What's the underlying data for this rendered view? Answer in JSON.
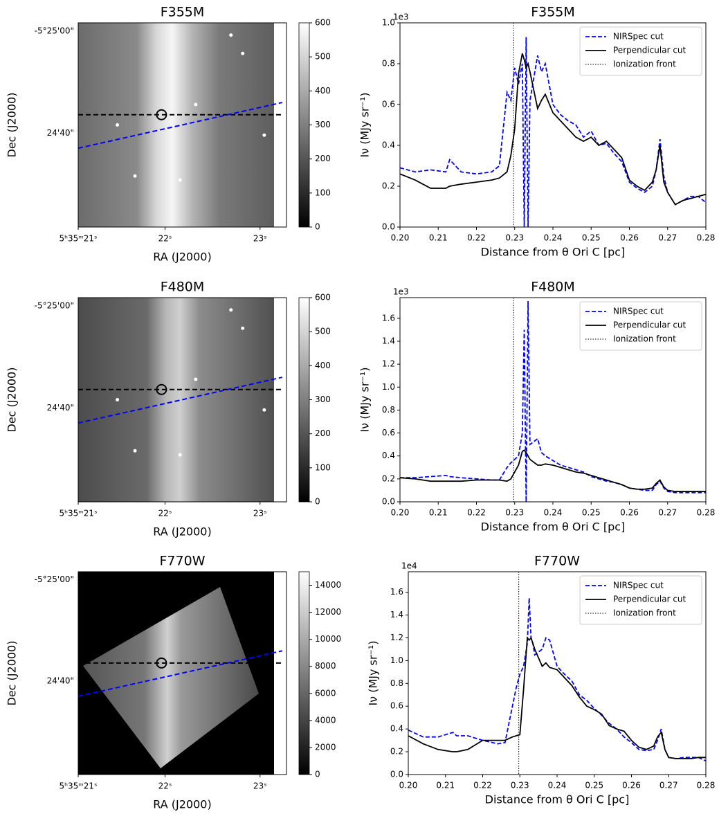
{
  "chart_data": [
    {
      "type": "image",
      "title": "F355M",
      "xlabel": "RA (J2000)",
      "ylabel": "Dec (J2000)",
      "xtick_labels": [
        "5ʰ35ᵐ21ˢ",
        "22ˢ",
        "23ˢ"
      ],
      "ytick_labels": [
        "-5°25'00\"",
        "24'40\""
      ],
      "clim": [
        0,
        600
      ],
      "cticks": [
        0,
        100,
        200,
        300,
        400,
        500,
        600
      ]
    },
    {
      "type": "line",
      "title": "F355M",
      "xlabel": "Distance from θ Ori C [pc]",
      "ylabel": "Iν (MJy sr⁻¹)",
      "y_offset_label": "1e3",
      "x": [
        0.2,
        0.204,
        0.208,
        0.212,
        0.213,
        0.216,
        0.22,
        0.224,
        0.226,
        0.228,
        0.229,
        0.23,
        0.231,
        0.232,
        0.2325,
        0.233,
        0.2335,
        0.234,
        0.236,
        0.237,
        0.238,
        0.24,
        0.242,
        0.244,
        0.246,
        0.248,
        0.25,
        0.252,
        0.254,
        0.256,
        0.258,
        0.26,
        0.262,
        0.264,
        0.266,
        0.267,
        0.268,
        0.269,
        0.27,
        0.272,
        0.274,
        0.276,
        0.278,
        0.28
      ],
      "series": [
        {
          "name": "NIRSpec cut",
          "color": "#0000ff",
          "style": "dashed",
          "values": [
            0.29,
            0.27,
            0.28,
            0.27,
            0.33,
            0.27,
            0.26,
            0.27,
            0.3,
            0.66,
            0.62,
            0.78,
            0.7,
            0.8,
            0.0,
            0.93,
            0.0,
            0.62,
            0.84,
            0.76,
            0.8,
            0.6,
            0.55,
            0.52,
            0.5,
            0.44,
            0.47,
            0.4,
            0.41,
            0.36,
            0.32,
            0.22,
            0.19,
            0.17,
            0.2,
            0.28,
            0.43,
            0.25,
            0.17,
            0.11,
            0.13,
            0.15,
            0.15,
            0.12
          ]
        },
        {
          "name": "Perpendicular cut",
          "color": "#000000",
          "style": "solid",
          "values": [
            0.26,
            0.23,
            0.19,
            0.19,
            0.2,
            0.21,
            0.22,
            0.23,
            0.24,
            0.27,
            0.35,
            0.48,
            0.75,
            0.85,
            0.82,
            0.78,
            0.8,
            0.76,
            0.58,
            0.62,
            0.65,
            0.56,
            0.52,
            0.48,
            0.44,
            0.42,
            0.44,
            0.4,
            0.42,
            0.38,
            0.34,
            0.23,
            0.2,
            0.18,
            0.22,
            0.28,
            0.4,
            0.22,
            0.17,
            0.11,
            0.13,
            0.14,
            0.15,
            0.16
          ]
        }
      ],
      "vlines": [
        {
          "name": "Ionization front",
          "x": 0.2297,
          "color": "#000000",
          "style": "dotted"
        }
      ],
      "xlim": [
        0.2,
        0.28
      ],
      "xticks": [
        {
          "value": 0.2,
          "label": "0.20"
        },
        0.21,
        0.22,
        0.23,
        0.24,
        0.25,
        0.26,
        0.27,
        0.28
      ],
      "ylim": [
        0,
        1
      ],
      "yticks": [
        {
          "value": 0,
          "label": "0.0"
        },
        0.2,
        0.4,
        0.6,
        0.8,
        {
          "value": 1,
          "label": "1.0"
        }
      ],
      "legend": "upper right"
    },
    {
      "type": "image",
      "title": "F480M",
      "xlabel": "RA (J2000)",
      "ylabel": "Dec (J2000)",
      "xtick_labels": [
        "5ʰ35ᵐ21ˢ",
        "22ˢ",
        "23ˢ"
      ],
      "ytick_labels": [
        "-5°25'00\"",
        "24'40\""
      ],
      "clim": [
        0,
        600
      ],
      "cticks": [
        0,
        100,
        200,
        300,
        400,
        500,
        600
      ]
    },
    {
      "type": "line",
      "title": "F480M",
      "xlabel": "Distance from θ Ori C [pc]",
      "ylabel": "Iν (MJy sr⁻¹)",
      "y_offset_label": "1e3",
      "x": [
        0.2,
        0.204,
        0.208,
        0.212,
        0.213,
        0.216,
        0.22,
        0.224,
        0.226,
        0.228,
        0.229,
        0.23,
        0.231,
        0.232,
        0.2325,
        0.233,
        0.2335,
        0.234,
        0.236,
        0.237,
        0.238,
        0.24,
        0.242,
        0.244,
        0.246,
        0.248,
        0.25,
        0.252,
        0.254,
        0.256,
        0.258,
        0.26,
        0.262,
        0.264,
        0.266,
        0.267,
        0.268,
        0.269,
        0.27,
        0.272,
        0.274,
        0.276,
        0.278,
        0.28
      ],
      "series": [
        {
          "name": "NIRSpec cut",
          "color": "#0000ff",
          "style": "dashed",
          "values": [
            0.21,
            0.21,
            0.22,
            0.23,
            0.22,
            0.21,
            0.2,
            0.19,
            0.19,
            0.3,
            0.34,
            0.37,
            0.4,
            0.6,
            1.5,
            0.0,
            1.75,
            0.5,
            0.55,
            0.43,
            0.4,
            0.36,
            0.32,
            0.3,
            0.28,
            0.26,
            0.22,
            0.2,
            0.18,
            0.17,
            0.15,
            0.12,
            0.11,
            0.1,
            0.1,
            0.15,
            0.18,
            0.12,
            0.09,
            0.08,
            0.08,
            0.08,
            0.08,
            0.08
          ]
        },
        {
          "name": "Perpendicular cut",
          "color": "#000000",
          "style": "solid",
          "values": [
            0.21,
            0.2,
            0.18,
            0.18,
            0.18,
            0.18,
            0.19,
            0.19,
            0.19,
            0.18,
            0.2,
            0.26,
            0.32,
            0.44,
            0.45,
            0.43,
            0.4,
            0.37,
            0.32,
            0.32,
            0.33,
            0.32,
            0.3,
            0.28,
            0.26,
            0.25,
            0.23,
            0.21,
            0.19,
            0.17,
            0.15,
            0.12,
            0.11,
            0.11,
            0.12,
            0.16,
            0.19,
            0.13,
            0.1,
            0.09,
            0.09,
            0.09,
            0.09,
            0.09
          ]
        }
      ],
      "vlines": [
        {
          "name": "Ionization front",
          "x": 0.2297,
          "color": "#000000",
          "style": "dotted"
        }
      ],
      "xlim": [
        0.2,
        0.28
      ],
      "xticks": [
        {
          "value": 0.2,
          "label": "0.20"
        },
        0.21,
        0.22,
        0.23,
        0.24,
        0.25,
        0.26,
        0.27,
        0.28
      ],
      "ylim": [
        0,
        1.78
      ],
      "yticks": [
        {
          "value": 0,
          "label": "0.0"
        },
        0.2,
        0.4,
        0.6,
        0.8,
        {
          "value": 1,
          "label": "1.0"
        },
        1.2,
        1.4,
        1.6
      ],
      "legend": "upper right"
    },
    {
      "type": "image",
      "title": "F770W",
      "xlabel": "RA (J2000)",
      "ylabel": "Dec (J2000)",
      "xtick_labels": [
        "5ʰ35ᵐ21ˢ",
        "22ˢ",
        "23ˢ"
      ],
      "ytick_labels": [
        "-5°25'00\"",
        "24'40\""
      ],
      "clim": [
        0,
        15000
      ],
      "cticks": [
        0,
        2000,
        4000,
        6000,
        8000,
        10000,
        12000,
        14000
      ]
    },
    {
      "type": "line",
      "title": "F770W",
      "xlabel": "Distance from θ Ori C [pc]",
      "ylabel": "Iν (MJy sr⁻¹)",
      "y_offset_label": "1e4",
      "x": [
        0.2,
        0.204,
        0.208,
        0.212,
        0.213,
        0.216,
        0.22,
        0.224,
        0.226,
        0.228,
        0.229,
        0.23,
        0.231,
        0.232,
        0.2325,
        0.233,
        0.2335,
        0.234,
        0.236,
        0.237,
        0.238,
        0.24,
        0.242,
        0.244,
        0.246,
        0.248,
        0.25,
        0.252,
        0.254,
        0.256,
        0.258,
        0.26,
        0.262,
        0.264,
        0.266,
        0.267,
        0.268,
        0.269,
        0.27,
        0.272,
        0.274,
        0.276,
        0.278,
        0.28
      ],
      "series": [
        {
          "name": "NIRSpec cut",
          "color": "#0000ff",
          "style": "dashed",
          "values": [
            0.39,
            0.33,
            0.33,
            0.37,
            0.34,
            0.34,
            0.3,
            0.27,
            0.28,
            0.6,
            0.76,
            0.88,
            0.95,
            1.15,
            1.55,
            1.2,
            1.15,
            1.05,
            1.1,
            1.2,
            1.18,
            0.95,
            0.88,
            0.82,
            0.7,
            0.65,
            0.58,
            0.52,
            0.45,
            0.4,
            0.33,
            0.28,
            0.22,
            0.21,
            0.22,
            0.3,
            0.4,
            0.22,
            0.15,
            0.14,
            0.15,
            0.15,
            0.15,
            0.12
          ]
        },
        {
          "name": "Perpendicular cut",
          "color": "#000000",
          "style": "solid",
          "values": [
            0.34,
            0.27,
            0.22,
            0.2,
            0.2,
            0.22,
            0.3,
            0.3,
            0.3,
            0.33,
            0.34,
            0.35,
            0.75,
            1.2,
            1.18,
            1.2,
            1.15,
            1.1,
            0.95,
            0.98,
            0.94,
            0.92,
            0.85,
            0.78,
            0.68,
            0.6,
            0.57,
            0.53,
            0.43,
            0.4,
            0.38,
            0.3,
            0.24,
            0.22,
            0.25,
            0.33,
            0.37,
            0.22,
            0.15,
            0.14,
            0.14,
            0.14,
            0.15,
            0.15
          ]
        }
      ],
      "vlines": [
        {
          "name": "Ionization front",
          "x": 0.2297,
          "color": "#000000",
          "style": "dotted"
        }
      ],
      "xlim": [
        0.2,
        0.28
      ],
      "xticks": [
        {
          "value": 0.2,
          "label": "0.20"
        },
        0.21,
        0.22,
        0.23,
        0.24,
        0.25,
        0.26,
        0.27,
        0.28
      ],
      "ylim": [
        0,
        1.78
      ],
      "yticks": [
        {
          "value": 0,
          "label": "0.0"
        },
        0.2,
        0.4,
        0.6,
        0.8,
        {
          "value": 1,
          "label": "1.0"
        },
        1.2,
        1.4,
        1.6
      ],
      "legend": "upper right"
    }
  ]
}
